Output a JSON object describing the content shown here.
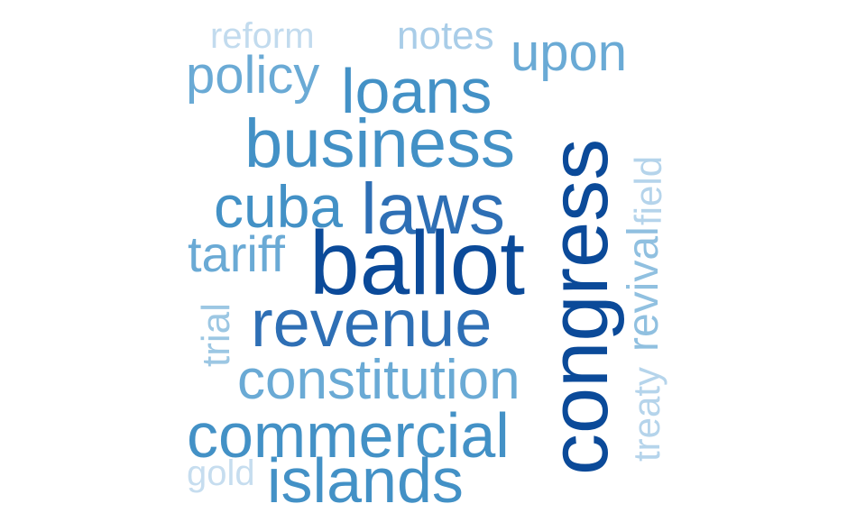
{
  "word_cloud": {
    "words": [
      {
        "key": "ballot",
        "text": "ballot",
        "color": "#0b4a99"
      },
      {
        "key": "congress",
        "text": "congress",
        "color": "#0b4a99"
      },
      {
        "key": "revenue",
        "text": "revenue",
        "color": "#2e6fb5"
      },
      {
        "key": "laws",
        "text": "laws",
        "color": "#2e6fb5"
      },
      {
        "key": "business",
        "text": "business",
        "color": "#4391c6"
      },
      {
        "key": "commercial",
        "text": "commercial",
        "color": "#4391c6"
      },
      {
        "key": "islands",
        "text": "islands",
        "color": "#4391c6"
      },
      {
        "key": "cuba",
        "text": "cuba",
        "color": "#4391c6"
      },
      {
        "key": "loans",
        "text": "loans",
        "color": "#4391c6"
      },
      {
        "key": "constitution",
        "text": "constitution",
        "color": "#6aaad5"
      },
      {
        "key": "tariff",
        "text": "tariff",
        "color": "#6aaad5"
      },
      {
        "key": "policy",
        "text": "policy",
        "color": "#6aaad5"
      },
      {
        "key": "upon",
        "text": "upon",
        "color": "#6aaad5"
      },
      {
        "key": "revival",
        "text": "revival",
        "color": "#90c0e0"
      },
      {
        "key": "trial",
        "text": "trial",
        "color": "#9cc7e3"
      },
      {
        "key": "treaty",
        "text": "treaty",
        "color": "#b5d4eb"
      },
      {
        "key": "field",
        "text": "field",
        "color": "#b5d4eb"
      },
      {
        "key": "notes",
        "text": "notes",
        "color": "#a9cde8"
      },
      {
        "key": "reform",
        "text": "reform",
        "color": "#c2dbee"
      },
      {
        "key": "gold",
        "text": "gold",
        "color": "#c6ddef"
      }
    ]
  }
}
